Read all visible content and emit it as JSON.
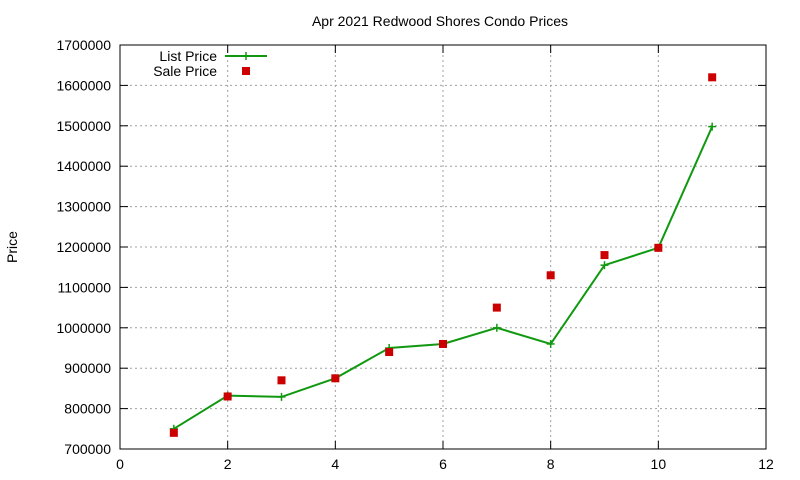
{
  "chart_data": {
    "type": "line",
    "title": "Apr 2021 Redwood Shores Condo Prices",
    "xlabel": "",
    "ylabel": "Price",
    "xlim": [
      0,
      12
    ],
    "ylim": [
      700000,
      1700000
    ],
    "x_ticks": [
      "0",
      "2",
      "4",
      "6",
      "8",
      "10",
      "12"
    ],
    "y_ticks": [
      "700000",
      "800000",
      "900000",
      "1000000",
      "1100000",
      "1200000",
      "1300000",
      "1400000",
      "1500000",
      "1600000",
      "1700000"
    ],
    "grid": true,
    "legend_position": "top-left",
    "series": [
      {
        "name": "List Price",
        "style": "line+cross",
        "color": "#109910",
        "x": [
          1,
          2,
          3,
          4,
          5,
          6,
          7,
          8,
          9,
          10,
          11
        ],
        "values": [
          750000,
          832000,
          829000,
          875000,
          950000,
          960000,
          1000000,
          960000,
          1155000,
          1198000,
          1498000
        ]
      },
      {
        "name": "Sale Price",
        "style": "square-markers",
        "color": "#cc0000",
        "x": [
          1,
          2,
          3,
          4,
          5,
          6,
          7,
          8,
          9,
          10,
          11
        ],
        "values": [
          740000,
          830000,
          870000,
          875000,
          940000,
          960000,
          1050000,
          1130000,
          1180000,
          1198000,
          1620000
        ]
      }
    ]
  }
}
